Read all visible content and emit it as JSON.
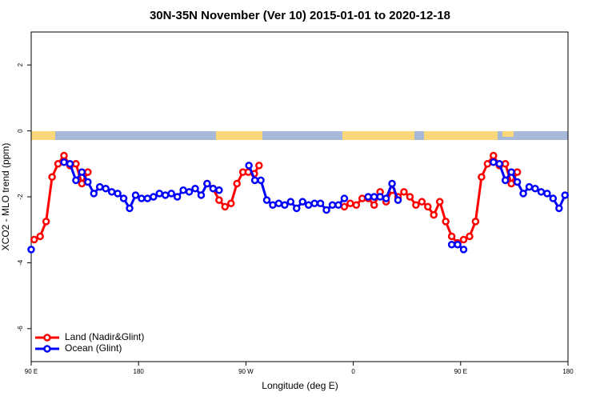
{
  "chart_data": {
    "type": "line",
    "title": "30N-35N November (Ver 10)   2015-01-01 to 2020-12-18",
    "x_label": "Longitude (deg E)",
    "y_label": "XCO2 - MLO trend (ppm)",
    "xlim": [
      90,
      540
    ],
    "xticks": [
      {
        "value": 90,
        "label": "90 E"
      },
      180,
      {
        "value": 270,
        "label": "90 W"
      },
      {
        "value": 360,
        "label": "0"
      },
      {
        "value": 450,
        "label": "90 E"
      },
      {
        "value": 540,
        "label": "180"
      }
    ],
    "ylim": [
      -7,
      3
    ],
    "yticks": [
      -6,
      -4,
      -2,
      0,
      2
    ],
    "legend": "bottom-left",
    "series": [
      {
        "name": "Land (Nadir&Glint)",
        "color": "#ff0000",
        "x": [
          92.5,
          97.5,
          102.5,
          107.5,
          112.5,
          117.5,
          122.5,
          127.5,
          132.5,
          137.5,
          null,
          237.5,
          242.5,
          247.5,
          252.5,
          257.5,
          262.5,
          267.5,
          272,
          277,
          281,
          null,
          352.5,
          357.5,
          362.5,
          367.5,
          372.5,
          377.5,
          382.5,
          387.5,
          392.5,
          397.5,
          402.5,
          407.5,
          412.5,
          417.5,
          422.5,
          427.5,
          432.5,
          437.5,
          442.5,
          447.5,
          452.5,
          457.5,
          462.5,
          467.5,
          472.5,
          477.5,
          482.5,
          487.5,
          492.5,
          497.5
        ],
        "values": [
          -3.3,
          -3.2,
          -2.75,
          -1.4,
          -1.0,
          -0.75,
          -1.05,
          -1.0,
          -1.6,
          -1.25,
          null,
          -1.6,
          -1.75,
          -2.1,
          -2.3,
          -2.2,
          -1.6,
          -1.25,
          -1.25,
          -1.3,
          -1.05,
          null,
          -2.3,
          -2.2,
          -2.25,
          -2.05,
          -2.05,
          -2.25,
          -1.85,
          -2.15,
          -1.8,
          -2.0,
          -1.85,
          -2.0,
          -2.25,
          -2.15,
          -2.3,
          -2.55,
          -2.15,
          -2.75,
          -3.2,
          -3.4,
          -3.3,
          -3.2,
          -2.75,
          -1.4,
          -1.0,
          -0.75,
          -1.05,
          -1.0,
          -1.6,
          -1.25
        ]
      },
      {
        "name": "Ocean (Glint)",
        "color": "#0000ff",
        "x": [
          90,
          null,
          117.5,
          122.5,
          127.5,
          132.5,
          137.5,
          142.5,
          147.5,
          152.5,
          157.5,
          162.5,
          167.5,
          172.5,
          177.5,
          182.5,
          187.5,
          192.5,
          197.5,
          202.5,
          207.5,
          212.5,
          217.5,
          222.5,
          227.5,
          232.5,
          237.5,
          242.5,
          247.5,
          null,
          272.5,
          277.5,
          282.5,
          287.5,
          292.5,
          297.5,
          302.5,
          307.5,
          312.5,
          317.5,
          322.5,
          327.5,
          332.5,
          337.5,
          342.5,
          347.5,
          352.5,
          null,
          372.5,
          377.5,
          382.5,
          387.5,
          392.5,
          397.5,
          null,
          442.5,
          447.5,
          452.5,
          null,
          477.5,
          482.5,
          487.5,
          492.5,
          497.5,
          502.5,
          507.5,
          512.5,
          517.5,
          522.5,
          527.5,
          532.5,
          537.5
        ],
        "values": [
          -3.6,
          null,
          -0.95,
          -1.0,
          -1.5,
          -1.25,
          -1.55,
          -1.9,
          -1.7,
          -1.75,
          -1.85,
          -1.9,
          -2.05,
          -2.35,
          -1.95,
          -2.05,
          -2.05,
          -2.0,
          -1.9,
          -1.95,
          -1.9,
          -2.0,
          -1.8,
          -1.85,
          -1.75,
          -1.95,
          -1.6,
          -1.75,
          -1.8,
          null,
          -1.05,
          -1.5,
          -1.5,
          -2.1,
          -2.25,
          -2.2,
          -2.25,
          -2.15,
          -2.35,
          -2.15,
          -2.25,
          -2.2,
          -2.2,
          -2.4,
          -2.25,
          -2.25,
          -2.05,
          null,
          -2.0,
          -2.0,
          -2.0,
          -2.05,
          -1.6,
          -2.1,
          null,
          -3.45,
          -3.45,
          -3.6,
          null,
          -0.95,
          -1.0,
          -1.5,
          -1.25,
          -1.55,
          -1.9,
          -1.7,
          -1.75,
          -1.85,
          -1.9,
          -2.05,
          -2.35,
          -1.95
        ]
      }
    ]
  }
}
